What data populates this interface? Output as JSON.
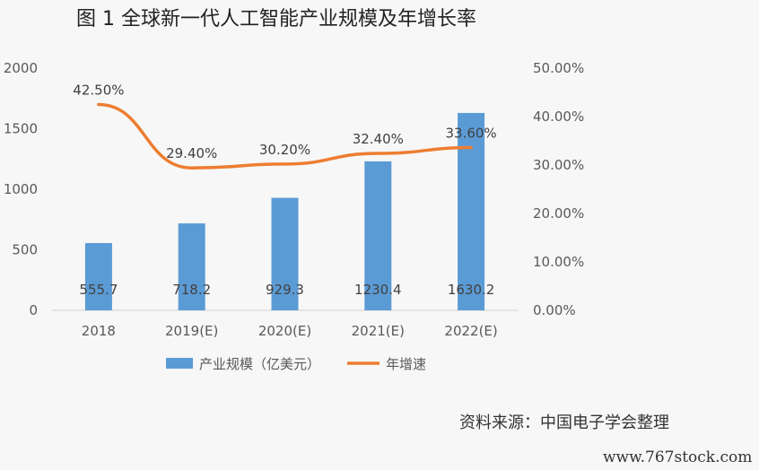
{
  "chart_data": {
    "type": "bar",
    "title": "图 1 全球新一代人工智能产业规模及年增长率",
    "categories": [
      "2018",
      "2019(E)",
      "2020(E)",
      "2021(E)",
      "2022(E)"
    ],
    "series": [
      {
        "name": "产业规模（亿美元）",
        "type": "bar",
        "axis": "left",
        "color": "#5b9bd5",
        "values": [
          555.7,
          718.2,
          929.3,
          1230.4,
          1630.2
        ],
        "labels": [
          "555.7",
          "718.2",
          "929.3",
          "1230.4",
          "1630.2"
        ]
      },
      {
        "name": "年增速",
        "type": "line",
        "axis": "right",
        "color": "#ed7d31",
        "values": [
          42.5,
          29.4,
          30.2,
          32.4,
          33.6
        ],
        "labels": [
          "42.50%",
          "29.40%",
          "30.20%",
          "32.40%",
          "33.60%"
        ]
      }
    ],
    "y_left": {
      "range": [
        0,
        2000
      ],
      "ticks": [
        0,
        500,
        1000,
        1500,
        2000
      ],
      "tick_labels": [
        "0",
        "500",
        "1000",
        "1500",
        "2000"
      ]
    },
    "y_right": {
      "range": [
        0,
        50
      ],
      "ticks": [
        0,
        10,
        20,
        30,
        40,
        50
      ],
      "tick_labels": [
        "0.00%",
        "10.00%",
        "20.00%",
        "30.00%",
        "40.00%",
        "50.00%"
      ]
    },
    "grid": false,
    "legend_position": "bottom"
  },
  "source_note": "资料来源：中国电子学会整理",
  "watermark": "www.767stock.com"
}
